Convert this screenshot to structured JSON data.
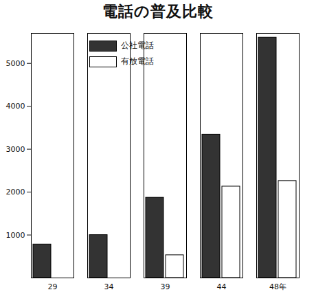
{
  "chart_data": {
    "type": "bar",
    "title": "電話の普及比較",
    "categories": [
      "29",
      "34",
      "39",
      "44",
      "48年"
    ],
    "series": [
      {
        "name": "公社電話",
        "color": "#333333",
        "values": [
          780,
          1000,
          1870,
          3340,
          5600
        ]
      },
      {
        "name": "有放電話",
        "color": "#ffffff",
        "values": [
          null,
          null,
          530,
          2130,
          2260
        ]
      }
    ],
    "ylim": [
      0,
      5700
    ],
    "yticks": [
      1000,
      2000,
      3000,
      4000,
      5000
    ],
    "grid": false,
    "legend": "upper left"
  }
}
